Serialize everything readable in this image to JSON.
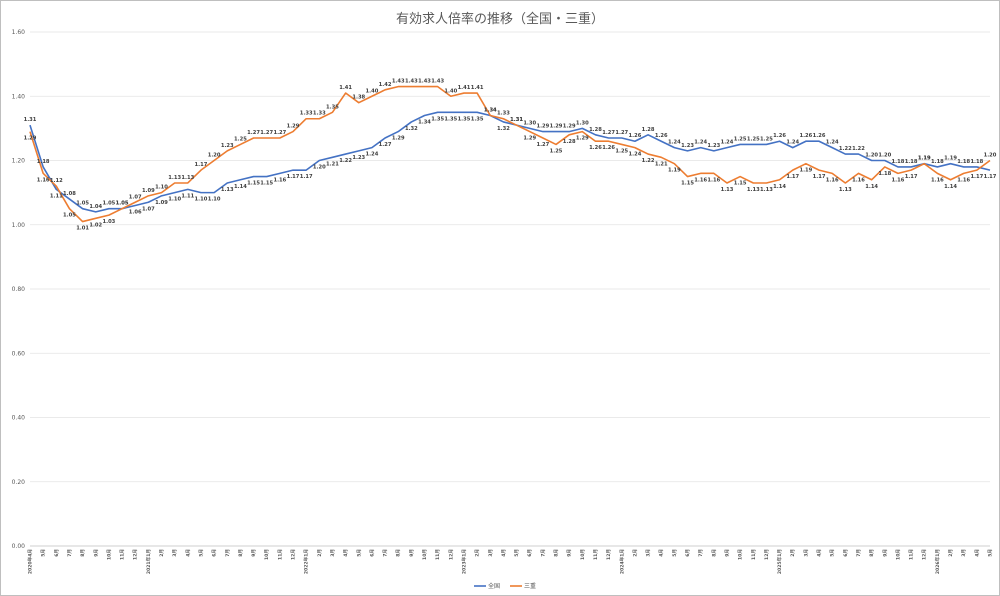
{
  "chart_data": {
    "type": "line",
    "title": "有効求人倍率の推移（全国・三重）",
    "ylim": [
      0,
      1.6
    ],
    "yticks": [
      "0.00",
      "0.20",
      "0.40",
      "0.60",
      "0.80",
      "1.00",
      "1.20",
      "1.40",
      "1.60"
    ],
    "grid": true,
    "legend": "bottom",
    "x": [
      "2020年4月",
      "5月",
      "6月",
      "7月",
      "8月",
      "9月",
      "10月",
      "11月",
      "12月",
      "2021年1月",
      "2月",
      "3月",
      "4月",
      "5月",
      "6月",
      "7月",
      "8月",
      "9月",
      "10月",
      "11月",
      "12月",
      "2022年1月",
      "2月",
      "3月",
      "4月",
      "5月",
      "6月",
      "7月",
      "8月",
      "9月",
      "10月",
      "11月",
      "12月",
      "2023年1月",
      "2月",
      "3月",
      "4月",
      "5月",
      "6月",
      "7月",
      "8月",
      "9月",
      "10月",
      "11月",
      "12月",
      "2024年1月",
      "2月",
      "3月",
      "4月",
      "5月",
      "6月",
      "7月",
      "8月",
      "9月",
      "10月",
      "11月",
      "12月",
      "2025年1月",
      "2月",
      "3月",
      "4月",
      "5月",
      "6月",
      "7月",
      "8月",
      "9月",
      "10月",
      "11月",
      "12月",
      "2026年1月",
      "2月",
      "3月",
      "4月",
      "5月"
    ],
    "series": [
      {
        "name": "全国",
        "color": "#4472c4",
        "values": [
          1.31,
          1.18,
          1.11,
          1.08,
          1.05,
          1.04,
          1.05,
          1.05,
          1.06,
          1.07,
          1.09,
          1.1,
          1.11,
          1.1,
          1.1,
          1.13,
          1.14,
          1.15,
          1.15,
          1.16,
          1.17,
          1.17,
          1.2,
          1.21,
          1.22,
          1.23,
          1.24,
          1.27,
          1.29,
          1.32,
          1.34,
          1.35,
          1.35,
          1.35,
          1.35,
          1.34,
          1.32,
          1.31,
          1.3,
          1.29,
          1.29,
          1.29,
          1.3,
          1.28,
          1.27,
          1.27,
          1.26,
          1.28,
          1.26,
          1.24,
          1.23,
          1.24,
          1.23,
          1.24,
          1.25,
          1.25,
          1.25,
          1.26,
          1.24,
          1.26,
          1.26,
          1.24,
          1.22,
          1.22,
          1.2,
          1.2,
          1.18,
          1.18,
          1.19,
          1.18,
          1.19,
          1.18,
          1.18,
          1.17
        ],
        "labels": [
          "1.31",
          "1.18",
          "1.11",
          "1.08",
          "1.05",
          "1.04",
          "1.05",
          "1.05",
          "1.06",
          "1.07",
          "1.09",
          "1.10",
          "1.11",
          "1.10",
          "1.10",
          "1.13",
          "1.14",
          "1.15",
          "1.15",
          "1.16",
          "1.17",
          "1.17",
          "1.20",
          "1.21",
          "1.22",
          "1.23",
          "1.24",
          "1.27",
          "1.29",
          "1.32",
          "1.34",
          "1.35",
          "1.35",
          "1.35",
          "1.35",
          "1.34",
          "1.32",
          "1.31",
          "1.30",
          "1.29",
          "1.29",
          "1.29",
          "1.30",
          "1.28",
          "1.27",
          "1.27",
          "1.26",
          "1.28",
          "1.26",
          "1.24",
          "1.23",
          "1.24",
          "1.23",
          "1.24",
          "1.25",
          "1.25",
          "1.25",
          "1.26",
          "1.24",
          "1.26",
          "1.26",
          "1.24",
          "1.22",
          "1.22",
          "1.20",
          "1.20",
          "1.18",
          "1.18",
          "1.19",
          "1.18",
          "1.19",
          "1.18",
          "1.18",
          "1.17"
        ]
      },
      {
        "name": "三重",
        "color": "#ed7d31",
        "values": [
          1.29,
          1.16,
          1.12,
          1.05,
          1.01,
          1.02,
          1.03,
          1.05,
          1.07,
          1.09,
          1.1,
          1.13,
          1.13,
          1.17,
          1.2,
          1.23,
          1.25,
          1.27,
          1.27,
          1.27,
          1.29,
          1.33,
          1.33,
          1.35,
          1.41,
          1.38,
          1.4,
          1.42,
          1.43,
          1.43,
          1.43,
          1.43,
          1.4,
          1.41,
          1.41,
          1.34,
          1.33,
          1.31,
          1.29,
          1.27,
          1.25,
          1.28,
          1.29,
          1.26,
          1.26,
          1.25,
          1.24,
          1.22,
          1.21,
          1.19,
          1.15,
          1.16,
          1.16,
          1.13,
          1.15,
          1.13,
          1.13,
          1.14,
          1.17,
          1.19,
          1.17,
          1.16,
          1.13,
          1.16,
          1.14,
          1.18,
          1.16,
          1.17,
          1.19,
          1.16,
          1.14,
          1.16,
          1.17,
          1.2
        ],
        "labels": [
          "1.29",
          "1.16",
          "1.12",
          "1.05",
          "1.01",
          "1.02",
          "1.03",
          "1.05",
          "1.07",
          "1.09",
          "1.10",
          "1.13",
          "1.13",
          "1.17",
          "1.20",
          "1.23",
          "1.25",
          "1.27",
          "1.27",
          "1.27",
          "1.29",
          "1.33",
          "1.33",
          "1.35",
          "1.41",
          "1.38",
          "1.40",
          "1.42",
          "1.43",
          "1.43",
          "1.43",
          "1.43",
          "1.40",
          "1.41",
          "1.41",
          "1.34",
          "1.33",
          "1.31",
          "1.29",
          "1.27",
          "1.25",
          "1.28",
          "1.29",
          "1.26",
          "1.26",
          "1.25",
          "1.24",
          "1.22",
          "1.21",
          "1.19",
          "1.15",
          "1.16",
          "1.16",
          "1.13",
          "1.15",
          "1.13",
          "1.13",
          "1.14",
          "1.17",
          "1.19",
          "1.17",
          "1.16",
          "1.13",
          "1.16",
          "1.14",
          "1.18",
          "1.16",
          "1.17",
          "1.19",
          "1.16",
          "1.14",
          "1.16",
          "1.17",
          "1.20"
        ]
      }
    ]
  }
}
